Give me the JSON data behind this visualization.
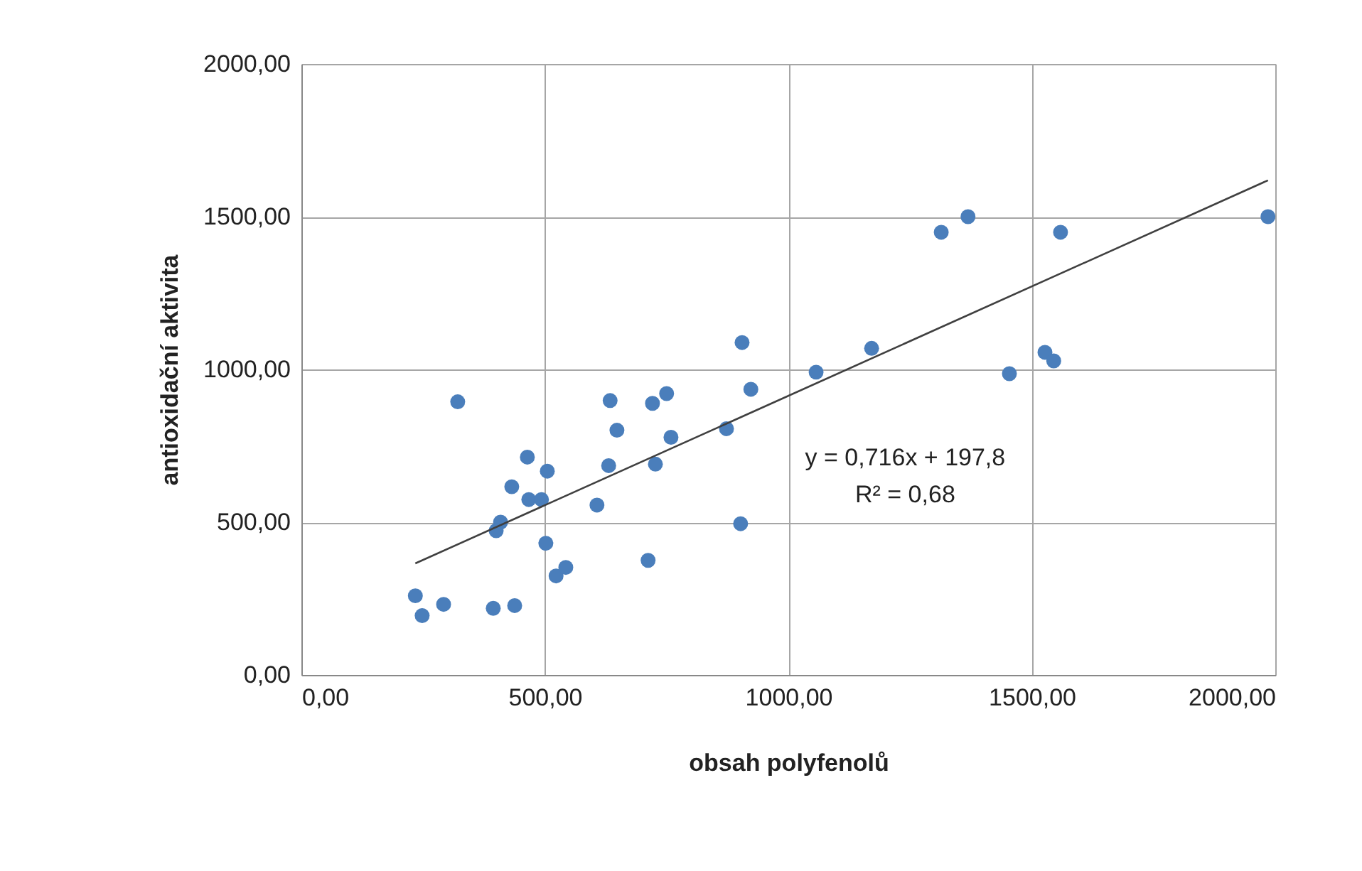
{
  "chart_data": {
    "type": "scatter",
    "xlabel": "obsah polyfenolů",
    "ylabel": "antioxidační aktivita",
    "xlim": [
      0,
      2000
    ],
    "ylim": [
      0,
      2000
    ],
    "xticks": [
      {
        "value": 0,
        "label": "0,00"
      },
      {
        "value": 500,
        "label": "500,00"
      },
      {
        "value": 1000,
        "label": "1000,00"
      },
      {
        "value": 1500,
        "label": "1500,00"
      },
      {
        "value": 2000,
        "label": "2000,00"
      }
    ],
    "yticks": [
      {
        "value": 0,
        "label": "0,00"
      },
      {
        "value": 500,
        "label": "500,00"
      },
      {
        "value": 1000,
        "label": "1000,00"
      },
      {
        "value": 1500,
        "label": "1500,00"
      },
      {
        "value": 2000,
        "label": "2000,00"
      }
    ],
    "grid": true,
    "marker": "circle",
    "series": [
      {
        "color": "#4a7ebb",
        "x": [
          234,
          248,
          292,
          394,
          438,
          321,
          464,
          432,
          467,
          493,
          505,
          409,
          400,
          502,
          523,
          543,
          607,
          631,
          634,
          648,
          721,
          750,
          727,
          759,
          712,
          873,
          923,
          902,
          905,
          1057,
          1171,
          1314,
          1369,
          1454,
          1527,
          1545,
          1559,
          1985
        ],
        "values": [
          259,
          194,
          231,
          218,
          227,
          894,
          713,
          616,
          574,
          574,
          667,
          500,
          472,
          431,
          324,
          352,
          556,
          685,
          898,
          801,
          889,
          921,
          690,
          778,
          375,
          806,
          935,
          495,
          1088,
          991,
          1069,
          1449,
          1500,
          986,
          1056,
          1028,
          1449,
          1500
        ]
      },
      {
        "type": "line",
        "color": "#404040",
        "marker": "none",
        "line_style": "solid",
        "x": [
          234,
          1985
        ],
        "values": [
          365,
          1619
        ]
      }
    ],
    "annotations": [
      "y = 0,716x + 197,8",
      "R² = 0,68"
    ]
  }
}
